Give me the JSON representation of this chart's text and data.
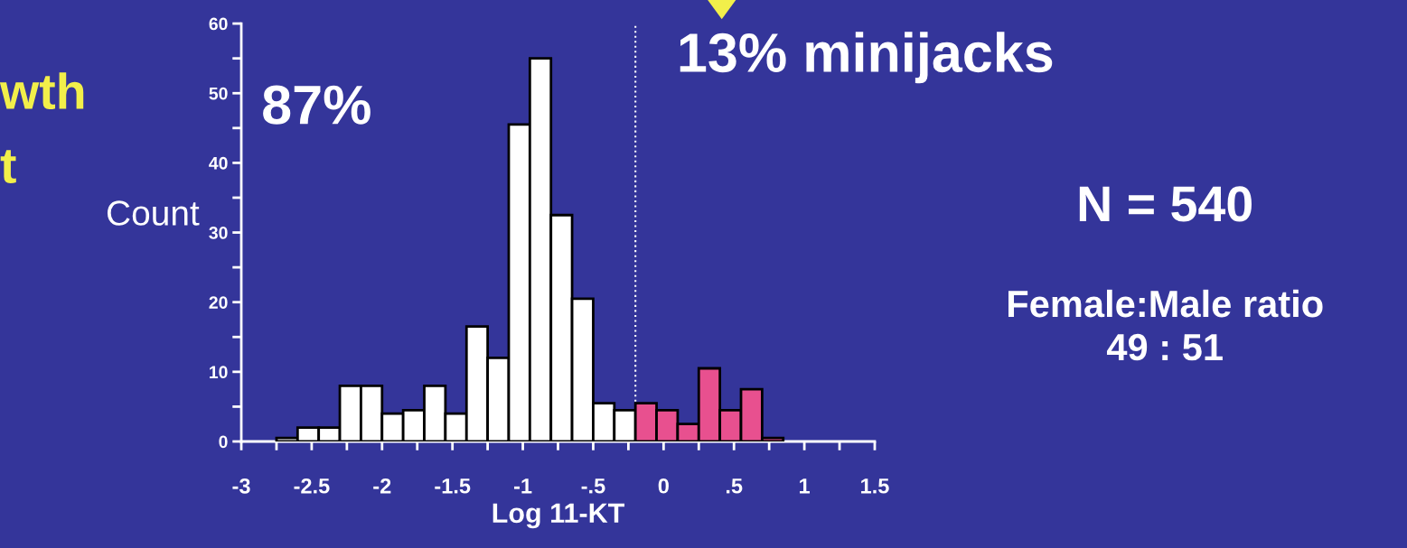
{
  "chart_data": {
    "type": "histogram",
    "xlabel": "Log 11-KT",
    "ylabel": "Count",
    "bins": [
      -2.75,
      -2.6,
      -2.45,
      -2.3,
      -2.15,
      -2.0,
      -1.85,
      -1.7,
      -1.55,
      -1.4,
      -1.25,
      -1.1,
      -0.95,
      -0.8,
      -0.65,
      -0.5,
      -0.35,
      -0.2,
      -0.05,
      0.1,
      0.25,
      0.4,
      0.55,
      0.7,
      0.85
    ],
    "values": [
      0.5,
      2,
      2,
      8,
      8,
      4,
      4.5,
      8,
      4,
      16.5,
      12,
      45.5,
      55,
      32.5,
      20.5,
      5.5,
      4.5,
      5.5,
      4.5,
      2.5,
      10.5,
      4.5,
      7.5,
      0.5
    ],
    "colors": [
      "#ffffff",
      "#ffffff",
      "#ffffff",
      "#ffffff",
      "#ffffff",
      "#ffffff",
      "#ffffff",
      "#ffffff",
      "#ffffff",
      "#ffffff",
      "#ffffff",
      "#ffffff",
      "#ffffff",
      "#ffffff",
      "#ffffff",
      "#ffffff",
      "#ffffff",
      "#e8508f",
      "#e8508f",
      "#e8508f",
      "#e8508f",
      "#e8508f",
      "#e8508f",
      "#e8508f"
    ],
    "xlim": [
      -3,
      1.5
    ],
    "xticks": [
      -3,
      {
        "value": -2.75,
        "label": null
      },
      -2.5,
      {
        "value": -2.25,
        "label": null
      },
      -2,
      {
        "value": -1.75,
        "label": null
      },
      -1.5,
      {
        "value": -1.25,
        "label": null
      },
      -1,
      {
        "value": -0.75,
        "label": null
      },
      {
        "value": -0.5,
        "label": "-.5"
      },
      {
        "value": -0.25,
        "label": null
      },
      0,
      {
        "value": 0.25,
        "label": null
      },
      {
        "value": 0.5,
        "label": ".5"
      },
      {
        "value": 0.75,
        "label": null
      },
      1,
      {
        "value": 1.25,
        "label": null
      },
      1.5
    ],
    "ylim": [
      0,
      60
    ],
    "yticks": [
      0,
      {
        "value": 5,
        "label": null
      },
      10,
      {
        "value": 15,
        "label": null
      },
      20,
      {
        "value": 25,
        "label": null
      },
      30,
      {
        "value": 35,
        "label": null
      },
      40,
      {
        "value": 45,
        "label": null
      },
      50,
      {
        "value": 55,
        "label": null
      },
      60
    ],
    "ref_lines": [
      {
        "axis": "x",
        "value": -0.2,
        "label": null,
        "color": "#ffffff",
        "line_style": "dotted"
      }
    ],
    "annotations": [
      "87%",
      "13% minijacks",
      "N = 540",
      "Female:Male ratio\n49 : 51",
      "wth",
      "t"
    ],
    "grid": false,
    "legend": false
  }
}
